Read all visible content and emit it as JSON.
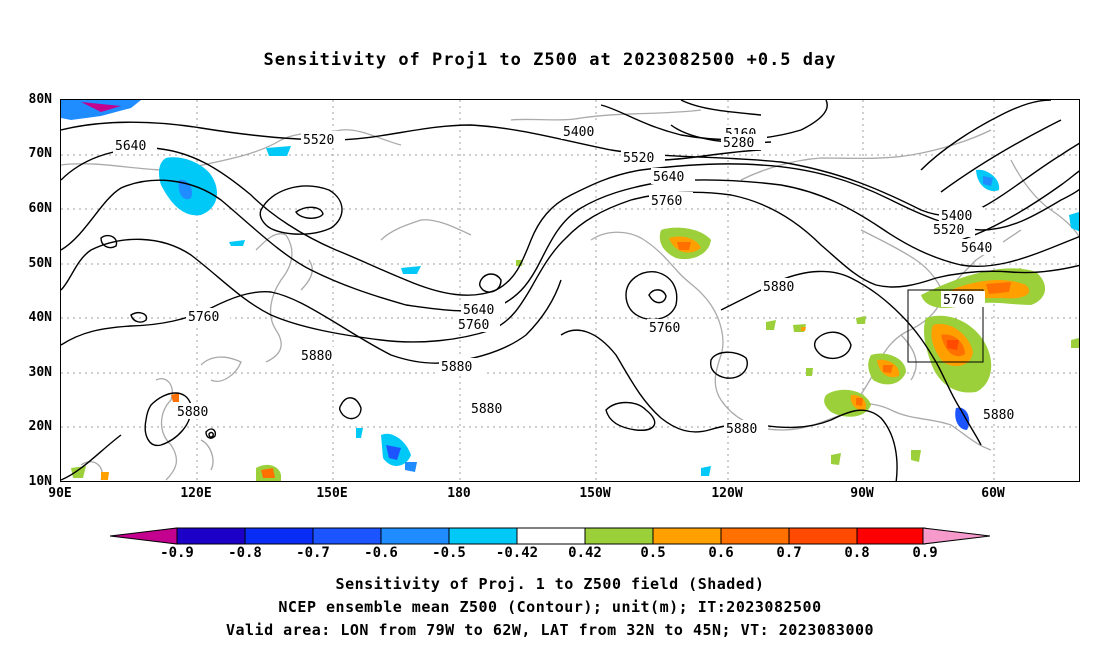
{
  "title": "Sensitivity of Proj1 to Z500 at 2023082500 +0.5 day",
  "lat_labels": [
    "80N",
    "70N",
    "60N",
    "50N",
    "40N",
    "30N",
    "20N",
    "10N"
  ],
  "lon_labels": [
    "90E",
    "120E",
    "150E",
    "180",
    "150W",
    "120W",
    "90W",
    "60W"
  ],
  "contour_labels": {
    "c5640_a": "5640",
    "c5520_a": "5520",
    "c5400_a": "5400",
    "c5160": "5160",
    "c5280": "5280",
    "c5520_b": "5520",
    "c5640_b": "5640",
    "c5760_a": "5760",
    "c5400_b": "5400",
    "c5520_c": "5520",
    "c5640_c": "5640",
    "c5880_a": "5880",
    "c5760_b": "5760",
    "c5640_d": "5640",
    "c5760_c": "5760",
    "c5760_d": "5760",
    "c5760_e": "5760",
    "c5880_b": "5880",
    "c5880_c": "5880",
    "c5880_d": "5880",
    "c5880_e": "5880",
    "c5880_f": "5880",
    "c5880_g": "5880"
  },
  "colorbar": {
    "colors": [
      "#c4008f",
      "#1d00c8",
      "#0a2df5",
      "#1c55ff",
      "#1f8cff",
      "#00c8f7",
      "#ffffff",
      "#9bd03a",
      "#ffa000",
      "#ff7000",
      "#ff4a00",
      "#ff0000",
      "#f59acb"
    ],
    "labels": [
      "-0.9",
      "-0.8",
      "-0.7",
      "-0.6",
      "-0.5",
      "-0.42",
      "0.42",
      "0.5",
      "0.6",
      "0.7",
      "0.8",
      "0.9"
    ]
  },
  "captions": [
    "Sensitivity of Proj. 1 to Z500 field (Shaded)",
    "NCEP ensemble mean Z500 (Contour); unit(m); IT:2023082500",
    "Valid area: LON from 79W to 62W, LAT from 32N to 45N; VT: 2023083000"
  ]
}
